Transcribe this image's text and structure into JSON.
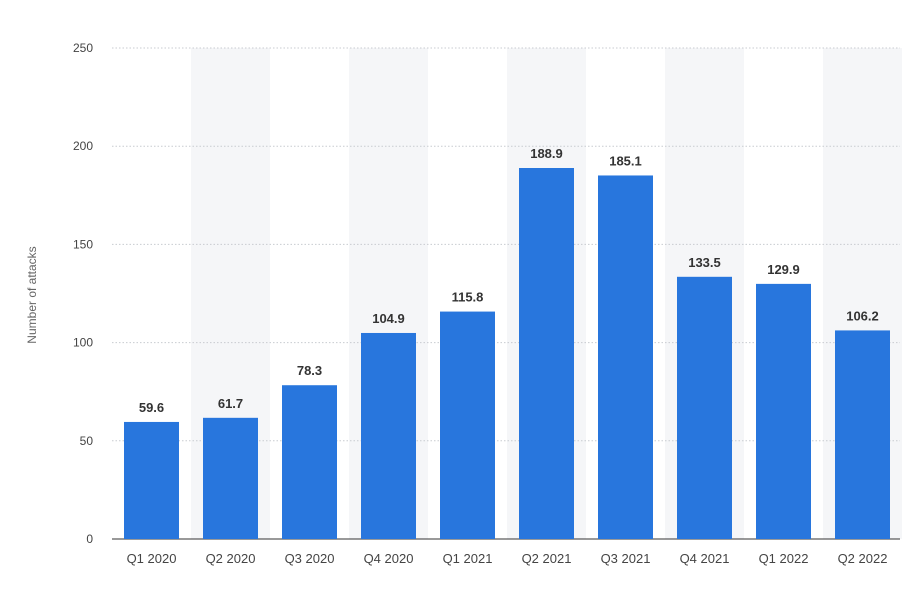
{
  "chart_data": {
    "type": "bar",
    "categories": [
      "Q1 2020",
      "Q2 2020",
      "Q3 2020",
      "Q4 2020",
      "Q1 2021",
      "Q2 2021",
      "Q3 2021",
      "Q4 2021",
      "Q1 2022",
      "Q2 2022"
    ],
    "values": [
      59.6,
      61.7,
      78.3,
      104.9,
      115.8,
      188.9,
      185.1,
      133.5,
      129.9,
      106.2
    ],
    "value_labels": [
      "59.6",
      "61.7",
      "78.3",
      "104.9",
      "115.8",
      "188.9",
      "185.1",
      "133.5",
      "129.9",
      "106.2"
    ],
    "ylabel": "Number of attacks",
    "ylim": [
      0,
      250
    ],
    "yticks": [
      0,
      50,
      100,
      150,
      200,
      250
    ],
    "grid": true,
    "colors": {
      "bar": "#2876dd",
      "band": "#f5f6f8",
      "grid": "#c8cbd0",
      "tick_text": "#444444",
      "label_text": "#333333"
    }
  }
}
